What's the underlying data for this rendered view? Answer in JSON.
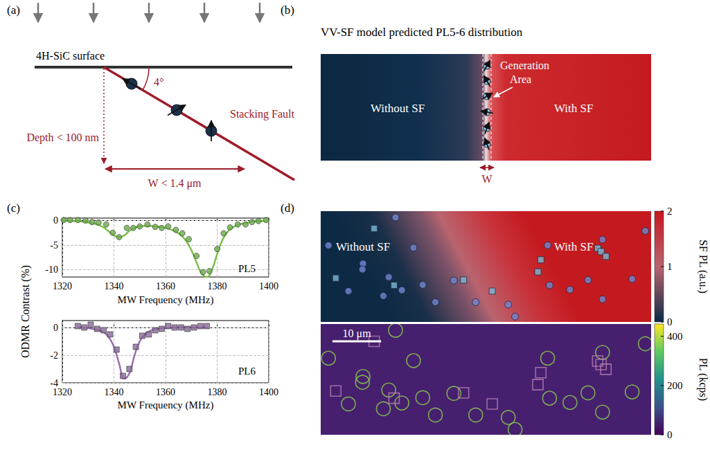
{
  "panels": {
    "a": {
      "letter": "(a)",
      "surface_label": "4H-SiC surface",
      "angle_label": "4°",
      "fault_label": "Stacking Fault",
      "depth_label": "Depth < 100 nm",
      "width_label": "W < 1.4 μm"
    },
    "b": {
      "letter": "(b)",
      "title": "VV-SF model predicted PL5-6 distribution",
      "left_label": "Without SF",
      "right_label": "With SF",
      "generation_label": "Generation Area",
      "width_label": "W"
    },
    "c": {
      "letter": "(c)",
      "y_label": "ODMR Contrast (%)"
    },
    "d": {
      "letter": "(d)",
      "left_label": "Without SF",
      "right_label": "With SF",
      "field_um": [
        68,
        23
      ],
      "scale_bar": {
        "length": 10,
        "label": "10 μm"
      },
      "circles": {
        "x": [
          15.4,
          1.6,
          8.7,
          8.6,
          19.1,
          14.0,
          27.4,
          5.7,
          12.9,
          16.7,
          21.0,
          23.6,
          31.9,
          40.0,
          38.6,
          46.7,
          47.1,
          51.3,
          55.0,
          58.0,
          58.0,
          64.1,
          66.8
        ],
        "y": [
          1.3,
          7.1,
          10.9,
          12.1,
          7.6,
          13.7,
          14.4,
          16.6,
          17.6,
          16.4,
          15.3,
          18.9,
          18.9,
          21.9,
          19.4,
          7.1,
          15.4,
          16.3,
          14.3,
          5.9,
          18.3,
          14.1,
          4.1
        ]
      },
      "squares": {
        "x": [
          11.0,
          3.1,
          15.1,
          29.4,
          35.3,
          45.3,
          44.7,
          57.0,
          57.7,
          58.7
        ],
        "y": [
          3.6,
          13.9,
          15.4,
          14.3,
          16.6,
          10.1,
          12.6,
          7.7,
          8.4,
          9.4
        ]
      },
      "sf_colorbar": {
        "label": "SF PL (a.u.)",
        "range": [
          0,
          2
        ],
        "ticks": [
          0,
          1,
          2
        ]
      },
      "pl_colorbar": {
        "label": "PL (kcps)",
        "range": [
          0,
          450
        ],
        "ticks": [
          0,
          200,
          400
        ]
      }
    }
  },
  "chart_data": [
    {
      "type": "scatter",
      "title": "PL5",
      "x_label": "MW Frequency (MHz)",
      "xlim": [
        1320,
        1400
      ],
      "xticks": [
        1320,
        1340,
        1360,
        1380,
        1400
      ],
      "ylim": [
        -11.5,
        0.5
      ],
      "yticks": [
        -10,
        -5,
        0
      ],
      "grid": true,
      "series": [
        {
          "type": "scatter",
          "marker": "circle",
          "color": "#6aab47",
          "x": [
            1320.5,
            1323,
            1326,
            1329,
            1331.5,
            1334,
            1337,
            1339.5,
            1342,
            1345,
            1347.5,
            1350,
            1353,
            1356,
            1358.5,
            1361,
            1364,
            1366.5,
            1369,
            1372,
            1374.5,
            1377,
            1380,
            1382.5,
            1385,
            1388,
            1391,
            1393.5,
            1396,
            1399
          ],
          "values": [
            0.1,
            0.1,
            0.1,
            0,
            -0.3,
            -0.4,
            -0.8,
            -2.5,
            -3.4,
            -1.5,
            -1.5,
            -1.2,
            -0.8,
            -1.3,
            -1.5,
            -1.2,
            -1.9,
            -2.6,
            -3.8,
            -7.2,
            -10.5,
            -10.3,
            -5.8,
            -2.6,
            -1.4,
            -0.8,
            -0.8,
            -0.3,
            -0.1,
            0.1
          ]
        },
        {
          "type": "line",
          "line_style": "solid",
          "color": "#7cbf4a",
          "x": [
            1320,
            1322,
            1324,
            1326,
            1328,
            1330,
            1332,
            1334,
            1336,
            1338,
            1340,
            1342,
            1344,
            1346,
            1348,
            1350,
            1352,
            1354,
            1356,
            1358,
            1360,
            1362,
            1364,
            1366,
            1368,
            1370,
            1372,
            1374,
            1376,
            1378,
            1380,
            1382,
            1384,
            1386,
            1388,
            1390,
            1392,
            1394,
            1396,
            1398,
            1400
          ],
          "values": [
            0,
            -0.05,
            -0.1,
            -0.15,
            -0.25,
            -0.4,
            -0.6,
            -0.9,
            -1.4,
            -2.2,
            -3.0,
            -3.4,
            -3.0,
            -2.1,
            -1.5,
            -1.2,
            -1.1,
            -1.1,
            -1.2,
            -1.3,
            -1.5,
            -1.8,
            -2.3,
            -3.0,
            -4.2,
            -6.0,
            -8.5,
            -10.8,
            -11.5,
            -10.0,
            -6.8,
            -4.0,
            -2.3,
            -1.4,
            -0.9,
            -0.6,
            -0.4,
            -0.25,
            -0.15,
            -0.1,
            -0.05
          ]
        }
      ]
    },
    {
      "type": "scatter",
      "title": "PL6",
      "x_label": "MW Frequency (MHz)",
      "xlim": [
        1320,
        1400
      ],
      "xticks": [
        1320,
        1340,
        1360,
        1380,
        1400
      ],
      "ylim": [
        -4,
        0.5
      ],
      "yticks": [
        -4,
        -2,
        0
      ],
      "grid": true,
      "series": [
        {
          "type": "scatter",
          "marker": "square",
          "color": "#8a6a98",
          "x": [
            1326,
            1328.5,
            1331,
            1333.5,
            1336,
            1338.5,
            1341,
            1343.5,
            1346,
            1348.5,
            1351,
            1353.5,
            1356,
            1358.5,
            1361,
            1363.5,
            1366,
            1368.5,
            1371,
            1373.5,
            1376
          ],
          "values": [
            0.1,
            0,
            0.2,
            -0.1,
            -0.2,
            -0.5,
            -1.6,
            -3.5,
            -3.0,
            -1.4,
            -0.6,
            -0.5,
            -0.2,
            -0.1,
            0.1,
            0,
            0,
            -0.1,
            0,
            0.1,
            0.1
          ]
        },
        {
          "type": "line",
          "line_style": "solid",
          "color": "#9a6fae",
          "x": [
            1326,
            1330,
            1334,
            1336,
            1338,
            1340,
            1342,
            1344,
            1346,
            1348,
            1350,
            1352,
            1354,
            1356,
            1360,
            1366,
            1376
          ],
          "values": [
            0,
            -0.05,
            -0.2,
            -0.35,
            -0.7,
            -1.4,
            -2.6,
            -3.7,
            -3.3,
            -2.0,
            -1.0,
            -0.5,
            -0.25,
            -0.12,
            -0.05,
            0,
            0
          ]
        }
      ]
    }
  ]
}
